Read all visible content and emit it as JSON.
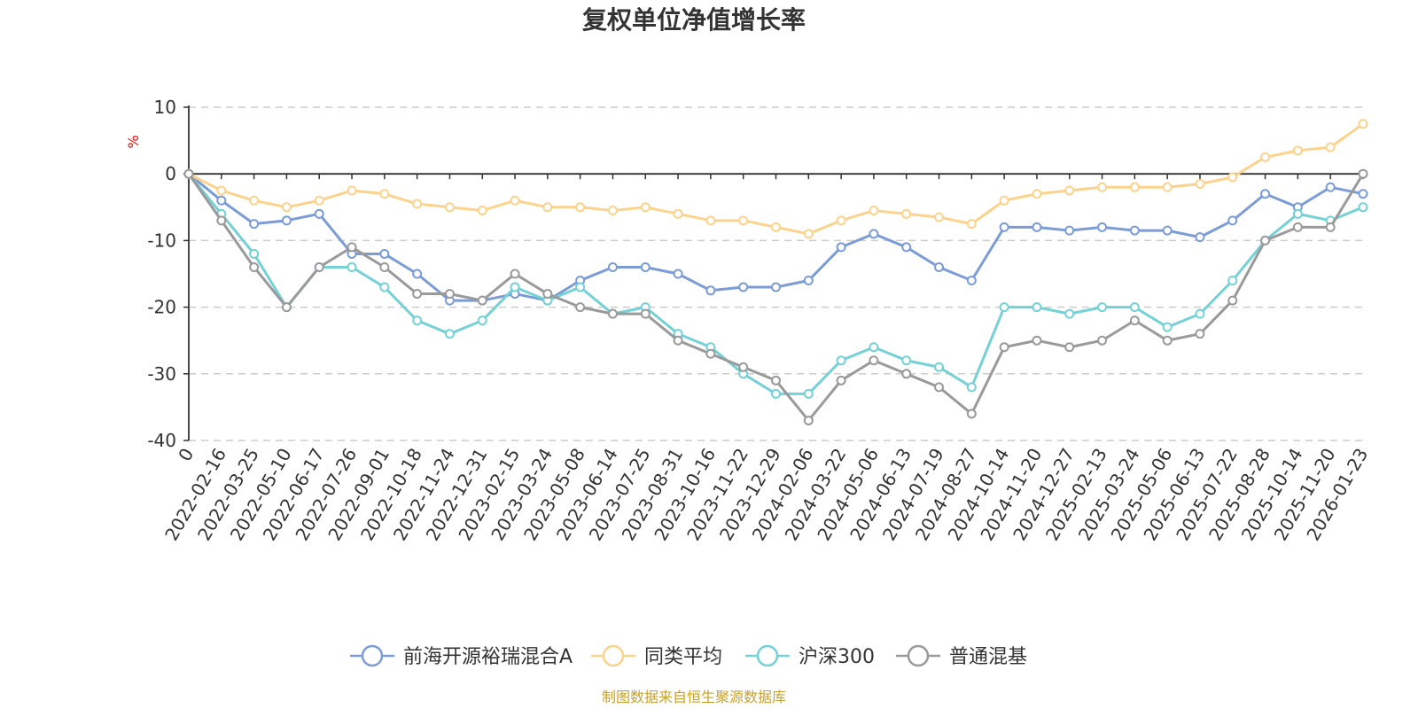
{
  "chart_data": {
    "type": "line",
    "title": "复权单位净值增长率",
    "ylabel": "%",
    "ylim": [
      -40,
      10
    ],
    "yticks": [
      10,
      0,
      -10,
      -20,
      -30,
      -40
    ],
    "grid": true,
    "legend_position": "bottom",
    "source": "制图数据来自恒生聚源数据库",
    "x": [
      "0",
      "2022-02-16",
      "2022-03-25",
      "2022-05-10",
      "2022-06-17",
      "2022-07-26",
      "2022-09-01",
      "2022-10-18",
      "2022-11-24",
      "2022-12-31",
      "2023-02-15",
      "2023-03-24",
      "2023-05-08",
      "2023-06-14",
      "2023-07-25",
      "2023-08-31",
      "2023-10-16",
      "2023-11-22",
      "2023-12-29",
      "2024-02-06",
      "2024-03-22",
      "2024-05-06",
      "2024-06-13",
      "2024-07-19",
      "2024-08-27",
      "2024-10-14",
      "2024-11-20",
      "2024-12-27",
      "2025-02-13",
      "2025-03-24",
      "2025-05-06",
      "2025-06-13",
      "2025-07-22",
      "2025-08-28",
      "2025-10-14",
      "2025-11-20",
      "2026-01-23"
    ],
    "series": [
      {
        "name": "前海开源裕瑞混合A",
        "color": "#7b9cd6",
        "values": [
          0,
          -4,
          -7.5,
          -7,
          -6,
          -12,
          -12,
          -15,
          -19,
          -19,
          -18,
          -19,
          -16,
          -14,
          -14,
          -15,
          -17.5,
          -17,
          -17,
          -16,
          -11,
          -9,
          -11,
          -14,
          -16,
          -8,
          -8,
          -8.5,
          -8,
          -8.5,
          -8.5,
          -9.5,
          -7,
          -3,
          -5,
          -2,
          -3
        ]
      },
      {
        "name": "同类平均",
        "color": "#fcd38c",
        "values": [
          0,
          -2.5,
          -4,
          -5,
          -4,
          -2.5,
          -3,
          -4.5,
          -5,
          -5.5,
          -4,
          -5,
          -5,
          -5.5,
          -5,
          -6,
          -7,
          -7,
          -8,
          -9,
          -7,
          -5.5,
          -6,
          -6.5,
          -7.5,
          -4,
          -3,
          -2.5,
          -2,
          -2,
          -2,
          -1.5,
          -0.5,
          2.5,
          3.5,
          4,
          7.5
        ]
      },
      {
        "name": "沪深300",
        "color": "#74d1d6",
        "values": [
          0,
          -6,
          -12,
          -20,
          -14,
          -14,
          -17,
          -22,
          -24,
          -22,
          -17,
          -19,
          -17,
          -21,
          -20,
          -24,
          -26,
          -30,
          -33,
          -33,
          -28,
          -26,
          -28,
          -29,
          -32,
          -20,
          -20,
          -21,
          -20,
          -20,
          -23,
          -21,
          -16,
          -10,
          -6,
          -7,
          -5
        ]
      },
      {
        "name": "普通混基",
        "color": "#9a9a9a",
        "values": [
          0,
          -7,
          -14,
          -20,
          -14,
          -11,
          -14,
          -18,
          -18,
          -19,
          -15,
          -18,
          -20,
          -21,
          -21,
          -25,
          -27,
          -29,
          -31,
          -37,
          -31,
          -28,
          -30,
          -32,
          -36,
          -26,
          -25,
          -26,
          -25,
          -22,
          -25,
          -24,
          -19,
          -10,
          -8,
          -8,
          0
        ]
      }
    ]
  }
}
